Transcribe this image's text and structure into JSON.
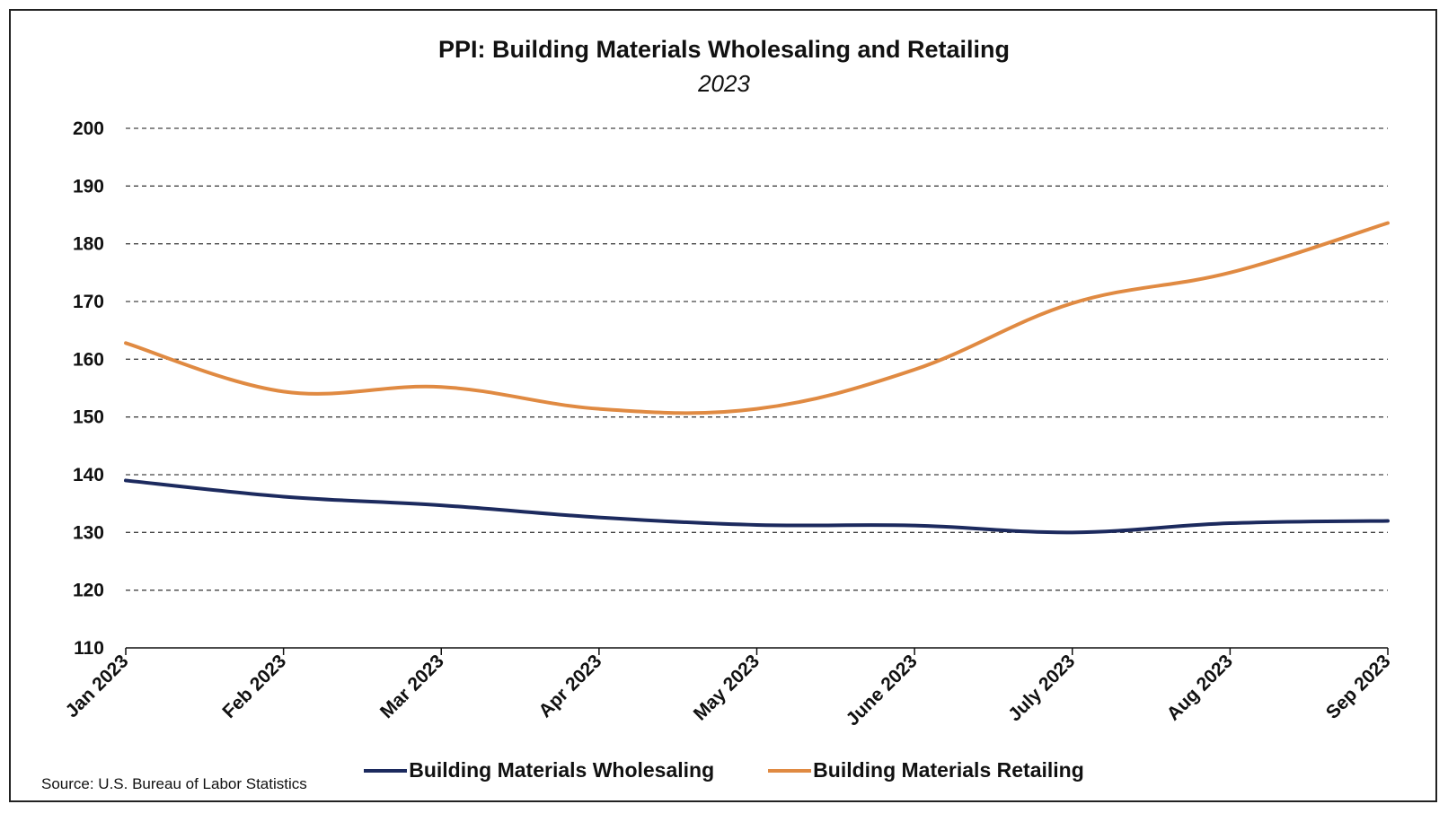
{
  "chart_data": {
    "type": "line",
    "title": "PPI: Building Materials Wholesaling and Retailing",
    "subtitle": "2023",
    "categories": [
      "Jan 2023",
      "Feb 2023",
      "Mar 2023",
      "Apr 2023",
      "May 2023",
      "June 2023",
      "July 2023",
      "Aug 2023",
      "Sep 2023"
    ],
    "series": [
      {
        "name": "Building Materials Wholesaling",
        "color": "#1c2a5e",
        "values": [
          139.0,
          136.2,
          134.7,
          132.6,
          131.3,
          131.2,
          130.0,
          131.6,
          132.0
        ]
      },
      {
        "name": "Building Materials Retailing",
        "color": "#e08a42",
        "values": [
          162.8,
          154.4,
          155.2,
          151.4,
          151.4,
          158.2,
          169.7,
          175.0,
          183.6
        ]
      }
    ],
    "ylim": [
      110,
      200
    ],
    "yticks": [
      "110",
      "120",
      "130",
      "140",
      "150",
      "160",
      "170",
      "180",
      "190",
      "200"
    ],
    "grid": "dashed horizontal",
    "legend_position": "bottom",
    "xlabel": "",
    "ylabel": ""
  },
  "source": "Source: U.S. Bureau of Labor Statistics"
}
